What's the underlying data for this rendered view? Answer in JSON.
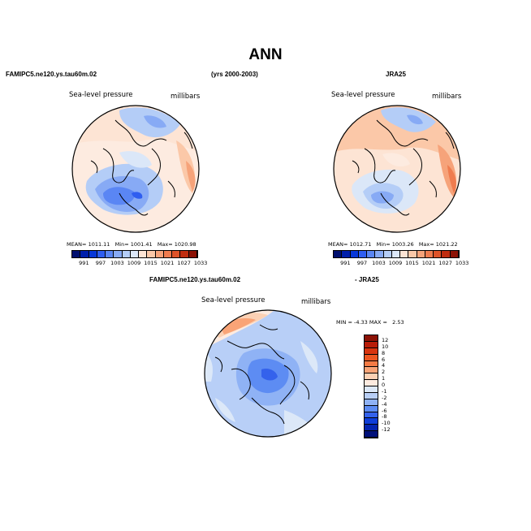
{
  "title": "ANN",
  "header": {
    "left_case": "FAMIPC5.ne120.ys.tau60m.02",
    "years": "(yrs 2000-2003)",
    "right_case": "JRA25",
    "diff_case": "FAMIPC5.ne120.ys.tau60m.02",
    "diff_ref": "- JRA25"
  },
  "panels": [
    {
      "field": "Sea-level pressure",
      "units": "millibars",
      "mean_label": "MEAN=",
      "mean": "1011.11",
      "min_label": "Min=",
      "min": "1001.41",
      "max_label": "Max=",
      "max": "1020.98"
    },
    {
      "field": "Sea-level pressure",
      "units": "millibars",
      "mean_label": "MEAN=",
      "mean": "1012.71",
      "min_label": "Min=",
      "min": "1003.26",
      "max_label": "Max=",
      "max": "1021.22"
    }
  ],
  "diff_panel": {
    "field": "Sea-level pressure",
    "units": "millibars",
    "min_label": "MIN =",
    "min": "-4.33",
    "max_label": "MAX =",
    "max": "2.53"
  },
  "colorbar_levels": [
    "991",
    "997",
    "1003",
    "1009",
    "1015",
    "1021",
    "1027",
    "1033"
  ],
  "colorbar_colors": [
    "#000f6e",
    "#001faa",
    "#0838d8",
    "#2f5ef0",
    "#5a86f4",
    "#87aaf5",
    "#b4cdf7",
    "#dbe7f8",
    "#fde4d4",
    "#fbc8a8",
    "#f6a37a",
    "#ef7c4f",
    "#de5329",
    "#c02d10",
    "#8c1205"
  ],
  "diff_levels": [
    "12",
    "10",
    "8",
    "6",
    "4",
    "2",
    "1",
    "0",
    "-1",
    "-2",
    "-4",
    "-6",
    "-8",
    "-10",
    "-12"
  ],
  "diff_colors": [
    "#8c1205",
    "#b81c08",
    "#d8340e",
    "#ec5520",
    "#f57b45",
    "#f9a477",
    "#fcd1b4",
    "#fdebe0",
    "#dce8f8",
    "#b8cff7",
    "#8fb2f5",
    "#5d8cf3",
    "#3462ec",
    "#0f3ed9",
    "#0424b0",
    "#00107a"
  ]
}
